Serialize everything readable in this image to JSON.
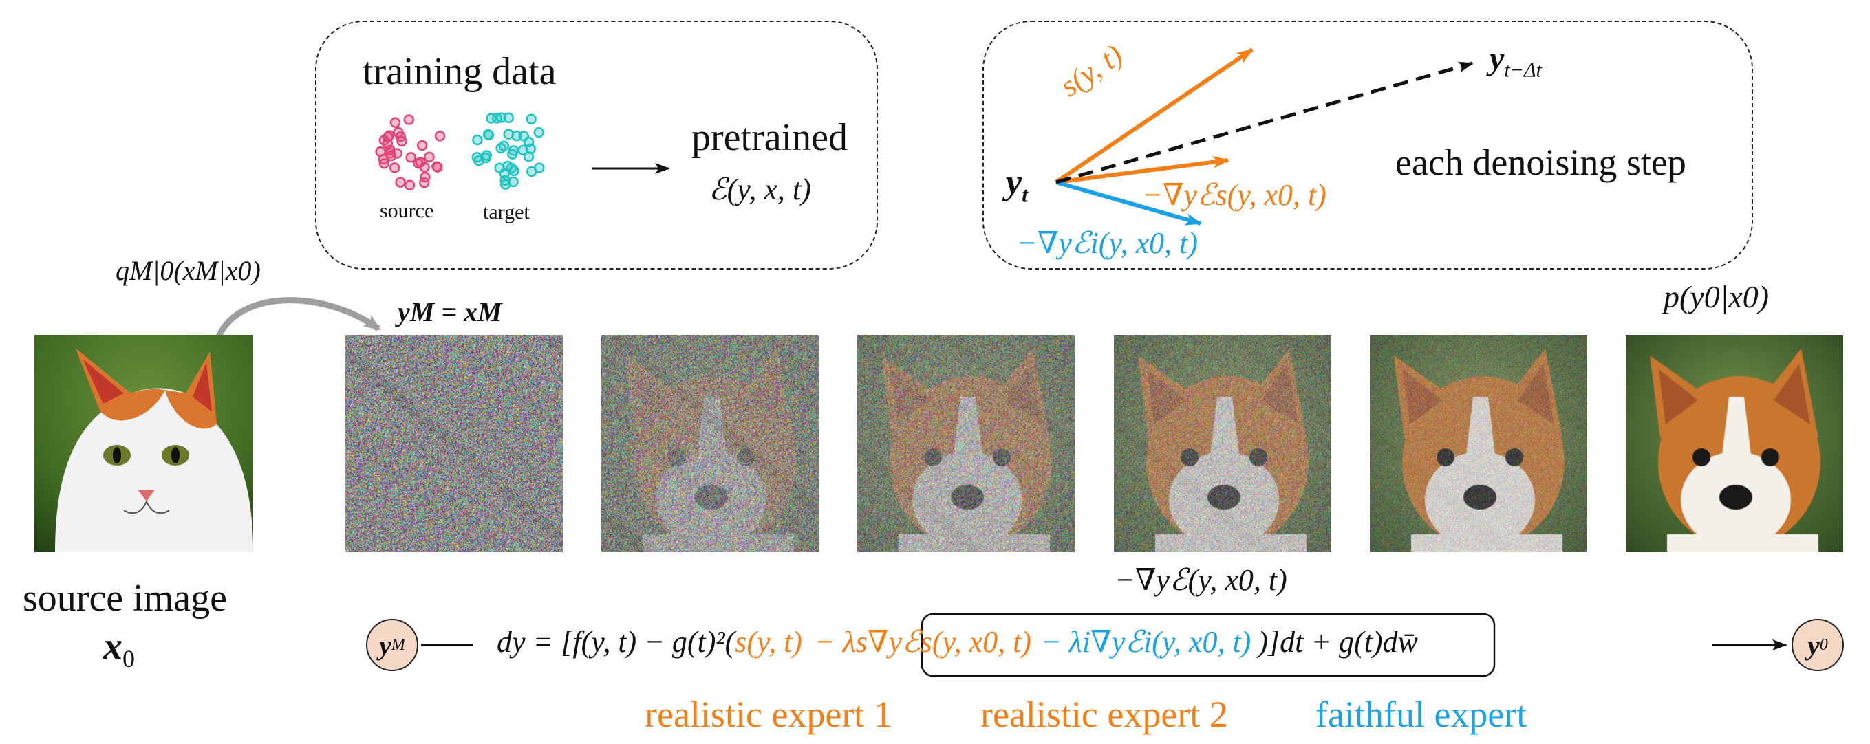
{
  "training_box": {
    "title": "training data",
    "source_label": "source",
    "target_label": "target",
    "pretrained_label": "pretrained",
    "energy_expr": "ℰ(y, x, t)",
    "source_color": "#e0457b",
    "target_color": "#21c4c0"
  },
  "step_box": {
    "caption": "each denoising step",
    "yt": "y",
    "yt_sub": "t",
    "y_next": "y",
    "y_next_sub": "t−Δt",
    "score_label": "s(y, t)",
    "grad_s_label": "−∇yℰs(y, x0, t)",
    "grad_i_label": "−∇yℰi(y, x0, t)",
    "orange": "#f57f17",
    "blue": "#1aa3e8"
  },
  "forward": {
    "kernel_label": "qM|0(xM|x0)",
    "init_label": "yM = xM",
    "output_label": "p(y0|x0)"
  },
  "source": {
    "caption_line1": "source image",
    "caption_line2": "x",
    "caption_line2_sub": "0",
    "image_desc": "cat photo"
  },
  "trajectory": {
    "frames": [
      "noise-level-1",
      "noise-level-2",
      "noise-level-3",
      "noise-level-4",
      "noise-level-5",
      "clean-dog"
    ],
    "grad_label": "−∇yℰ(y, x0, t)"
  },
  "sde": {
    "start_node": "y",
    "start_sub": "M",
    "end_node": "y",
    "end_sub": "0",
    "eq_prefix": "dy = [f(y, t) − g(t)²(",
    "eq_score": "s(y, t)",
    "eq_term_s": "− λs∇yℰs(y, x0, t)",
    "eq_term_i": "− λi∇yℰi(y, x0, t)",
    "eq_suffix": ")]dt + g(t)dw̄"
  },
  "experts": {
    "expert1": "realistic expert 1",
    "expert2": "realistic expert 2",
    "expert3": "faithful expert"
  }
}
